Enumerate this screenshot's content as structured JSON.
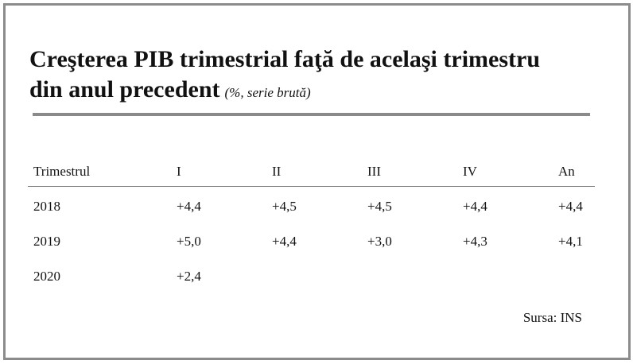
{
  "header": {
    "title": [
      "Creşterea PIB trimestrial faţă de acelaşi trimestru",
      "din anul precedent"
    ],
    "subtitle": "(%, serie brută)"
  },
  "table": {
    "columns": [
      "Trimestrul",
      "I",
      "II",
      "III",
      "IV",
      "An"
    ],
    "rows": [
      [
        "2018",
        "+4,4",
        "+4,5",
        "+4,5",
        "+4,4",
        "+4,4"
      ],
      [
        "2019",
        "+5,0",
        "+4,4",
        "+3,0",
        "+4,3",
        "+4,1"
      ],
      [
        "2020",
        "+2,4"
      ]
    ]
  },
  "source": "Sursa: INS"
}
